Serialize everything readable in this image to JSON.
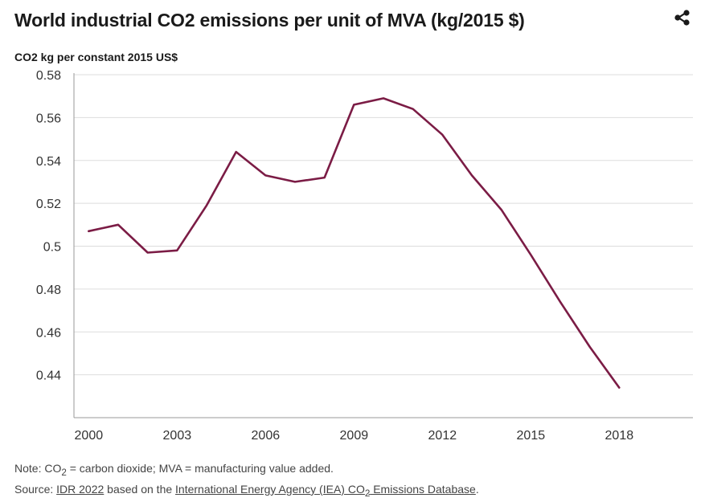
{
  "chart_data": {
    "type": "line",
    "title": "World industrial CO2 emissions per unit of MVA (kg/2015 $)",
    "ylabel": "CO2 kg per constant 2015 US$",
    "xlabel": "",
    "x": [
      2000,
      2001,
      2002,
      2003,
      2004,
      2005,
      2006,
      2007,
      2008,
      2009,
      2010,
      2011,
      2012,
      2013,
      2014,
      2015,
      2016,
      2017,
      2018
    ],
    "series": [
      {
        "name": "CO2 kg per constant 2015 US$",
        "values": [
          0.507,
          0.51,
          0.497,
          0.498,
          0.519,
          0.544,
          0.533,
          0.53,
          0.532,
          0.566,
          0.569,
          0.564,
          0.552,
          0.533,
          0.517,
          0.496,
          0.474,
          0.453,
          0.434
        ],
        "color": "#7b1c45"
      }
    ],
    "xticks": [
      2000,
      2003,
      2006,
      2009,
      2012,
      2015,
      2018
    ],
    "xtick_labels": [
      "2000",
      "2003",
      "2006",
      "2009",
      "2012",
      "2015",
      "2018"
    ],
    "yticks": [
      0.44,
      0.46,
      0.48,
      0.5,
      0.52,
      0.54,
      0.56,
      0.58
    ],
    "ytick_labels": [
      "0.44",
      "0.46",
      "0.48",
      "0.5",
      "0.52",
      "0.54",
      "0.56",
      "0.58"
    ],
    "ylim": [
      0.42,
      0.58
    ],
    "xlim": [
      1999.5,
      2020.5
    ],
    "grid": true
  },
  "colors": {
    "gridline": "#dddddd",
    "axis": "#999999",
    "line": "#7b1c45"
  },
  "icons": {
    "share": "share-icon"
  },
  "footer": {
    "note_prefix": "Note: CO",
    "note_sub": "2",
    "note_rest": " = carbon dioxide; MVA = manufacturing value added.",
    "source_prefix": "Source: ",
    "source_link1": "IDR 2022",
    "source_mid": " based on the ",
    "source_link2_a": "International Energy Agency (IEA) CO",
    "source_link2_sub": "2",
    "source_link2_b": " Emissions Database",
    "source_end": "."
  }
}
